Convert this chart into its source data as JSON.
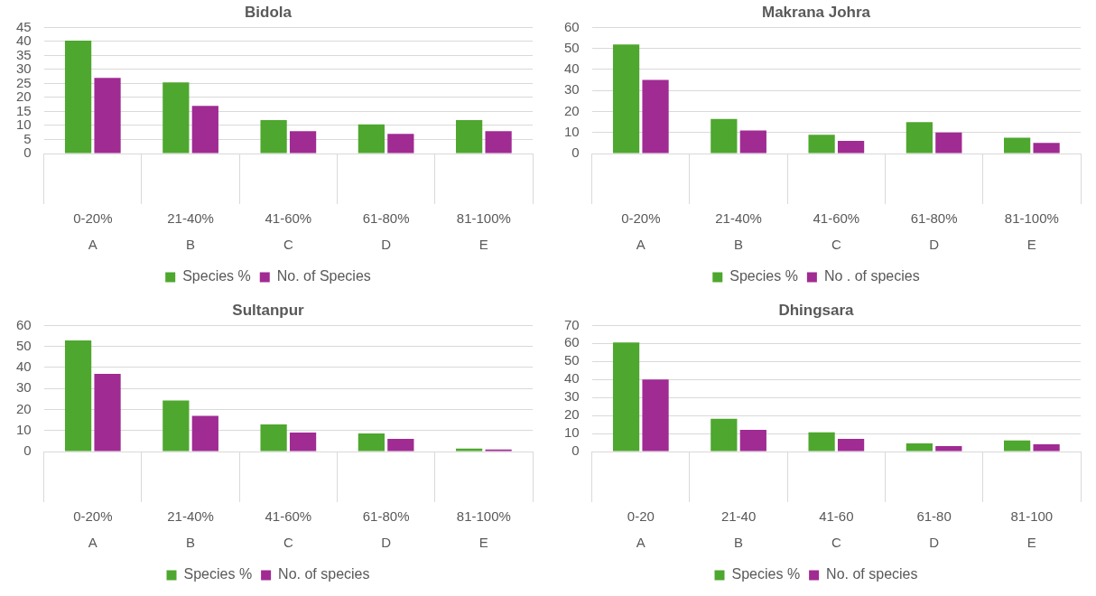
{
  "chart_data": [
    {
      "type": "bar",
      "title": "Bidola",
      "categories": [
        "0-20%\nA",
        "21-40%\nB",
        "41-60%\nC",
        "61-80%\nD",
        "81-100%\nE"
      ],
      "series": [
        {
          "name": "Species %",
          "color": "#4ea72e",
          "values": [
            40.3,
            25.4,
            11.9,
            10.4,
            11.9
          ]
        },
        {
          "name": "No. of Species",
          "color": "#a02b93",
          "values": [
            27,
            17,
            8,
            7,
            8
          ]
        }
      ],
      "ylim": [
        0,
        45
      ],
      "yticks": [
        0,
        5,
        10,
        15,
        20,
        25,
        30,
        35,
        40,
        45
      ],
      "grid": "y",
      "legend": "bottom"
    },
    {
      "type": "bar",
      "title": "Makrana Johra",
      "categories": [
        "0-20%\nA",
        "21-40%\nB",
        "41-60%\nC",
        "61-80%\nD",
        "81-100%\nE"
      ],
      "series": [
        {
          "name": "Species %",
          "color": "#4ea72e",
          "values": [
            51.9,
            16.4,
            8.9,
            14.9,
            7.5
          ]
        },
        {
          "name": "No . of species",
          "color": "#a02b93",
          "values": [
            35,
            11,
            6,
            10,
            5
          ]
        }
      ],
      "ylim": [
        0,
        60
      ],
      "yticks": [
        0,
        10,
        20,
        30,
        40,
        50,
        60
      ],
      "grid": "y",
      "legend": "bottom"
    },
    {
      "type": "bar",
      "title": "Sultanpur",
      "categories": [
        "0-20%\nA",
        "21-40%\nB",
        "41-60%\nC",
        "61-80%\nD",
        "81-100%\nE"
      ],
      "series": [
        {
          "name": "Species %",
          "color": "#4ea72e",
          "values": [
            52.9,
            24.3,
            12.9,
            8.6,
            1.4
          ]
        },
        {
          "name": "No. of species",
          "color": "#a02b93",
          "values": [
            37,
            17,
            9,
            6,
            1
          ]
        }
      ],
      "ylim": [
        0,
        60
      ],
      "yticks": [
        0,
        10,
        20,
        30,
        40,
        50,
        60
      ],
      "grid": "y",
      "legend": "bottom"
    },
    {
      "type": "bar",
      "title": "Dhingsara",
      "categories": [
        "0-20\nA",
        "21-40\nB",
        "41-60\nC",
        "61-80\nD",
        "81-100\nE"
      ],
      "series": [
        {
          "name": "Species %",
          "color": "#4ea72e",
          "values": [
            60.6,
            18.2,
            10.6,
            4.5,
            6.1
          ]
        },
        {
          "name": "No. of species",
          "color": "#a02b93",
          "values": [
            40,
            12,
            7,
            3,
            4
          ]
        }
      ],
      "ylim": [
        0,
        70
      ],
      "yticks": [
        0,
        10,
        20,
        30,
        40,
        50,
        60,
        70
      ],
      "grid": "y",
      "legend": "bottom"
    }
  ]
}
